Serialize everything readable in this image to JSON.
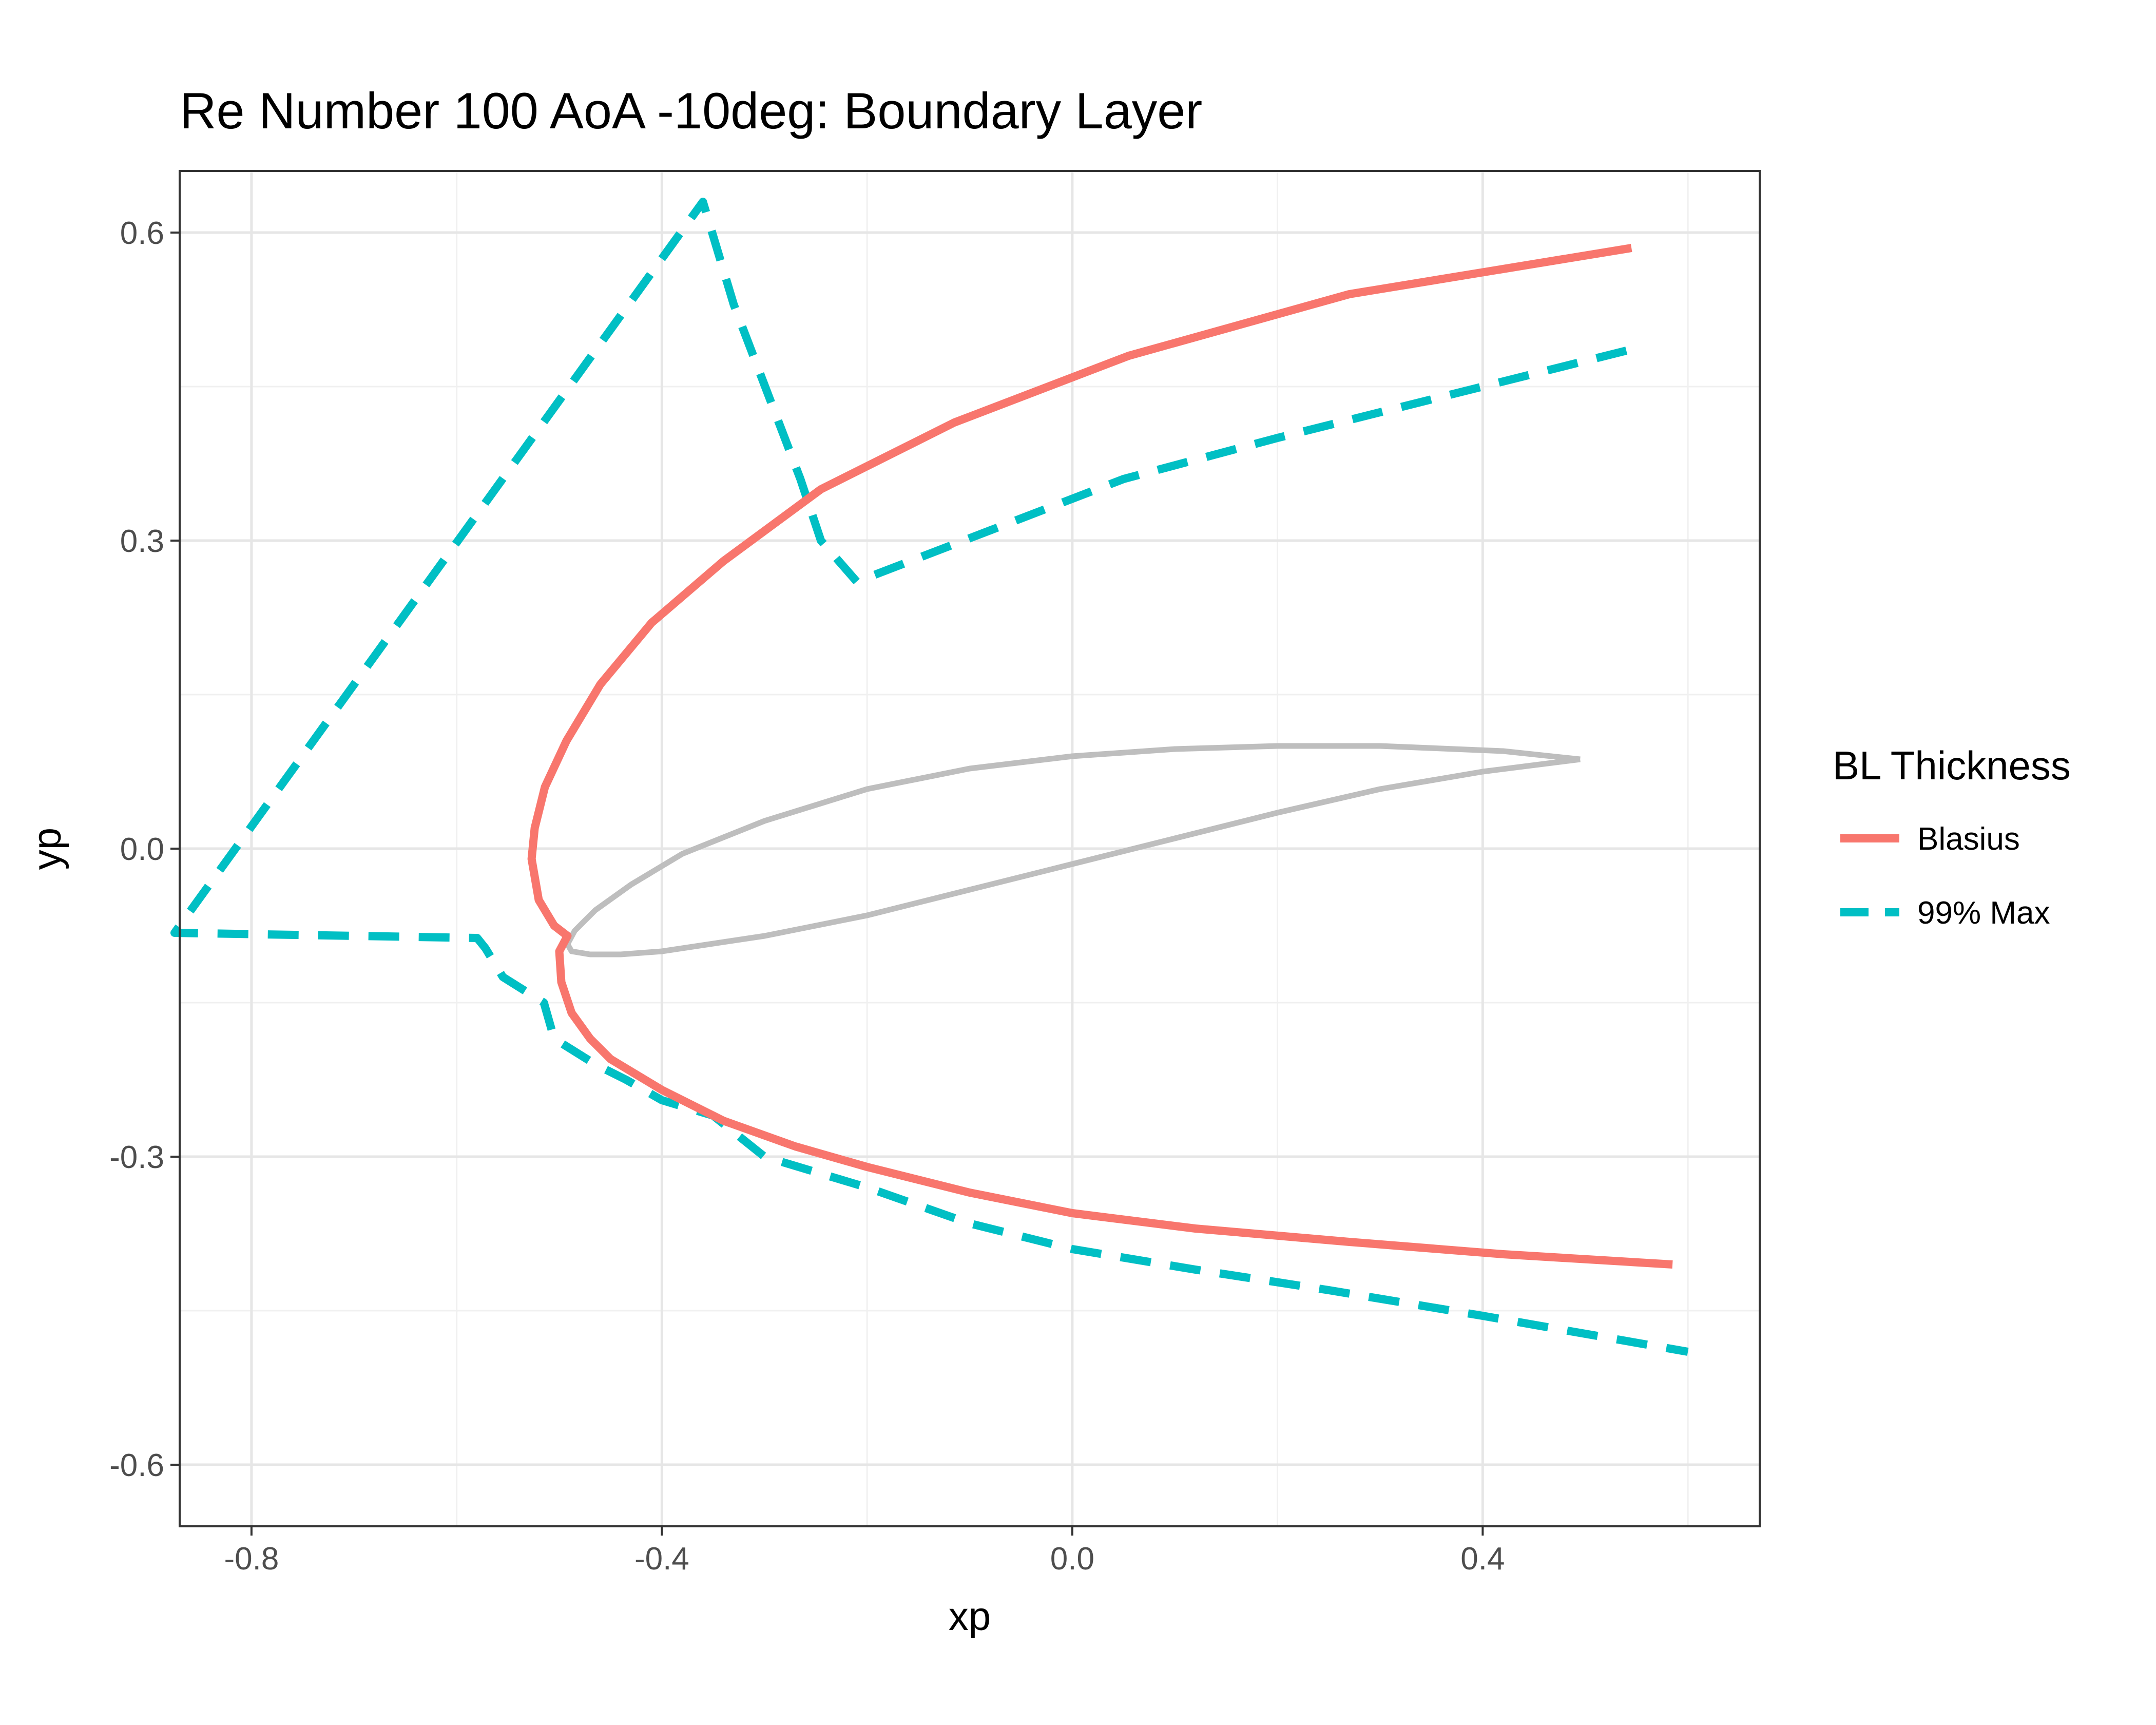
{
  "chart_data": {
    "type": "line",
    "title": "Re Number 100 AoA -10deg: Boundary Layer",
    "xlabel": "xp",
    "ylabel": "yp",
    "xlim": [
      -0.87,
      0.67
    ],
    "ylim": [
      -0.66,
      0.66
    ],
    "x_ticks": [
      -0.8,
      -0.4,
      0.0,
      0.4
    ],
    "x_tick_labels": [
      "-0.8",
      "-0.4",
      "0.0",
      "0.4"
    ],
    "y_ticks": [
      -0.6,
      -0.3,
      0.0,
      0.3,
      0.6
    ],
    "y_tick_labels": [
      "-0.6",
      "-0.3",
      "0.0",
      "0.3",
      "0.6"
    ],
    "grid": true,
    "legend": {
      "title": "BL Thickness",
      "position": "right",
      "entries": [
        "Blasius",
        "99% Max"
      ]
    },
    "series": [
      {
        "name": "Blasius",
        "color": "#f8766d",
        "dash": "solid",
        "x": [
          0.545,
          0.27,
          0.055,
          -0.115,
          -0.245,
          -0.34,
          -0.41,
          -0.46,
          -0.493,
          -0.514,
          -0.524,
          -0.527,
          -0.52,
          -0.505,
          -0.492,
          -0.5,
          -0.498,
          -0.488,
          -0.47,
          -0.45,
          -0.4,
          -0.34,
          -0.27,
          -0.2,
          -0.1,
          0.0,
          0.12,
          0.27,
          0.42,
          0.585
        ],
        "y": [
          0.585,
          0.54,
          0.48,
          0.415,
          0.35,
          0.28,
          0.22,
          0.16,
          0.105,
          0.06,
          0.02,
          -0.01,
          -0.05,
          -0.075,
          -0.085,
          -0.1,
          -0.13,
          -0.16,
          -0.185,
          -0.205,
          -0.235,
          -0.265,
          -0.29,
          -0.31,
          -0.335,
          -0.355,
          -0.37,
          -0.383,
          -0.395,
          -0.405
        ]
      },
      {
        "name": "99% Max",
        "color": "#00bfc4",
        "dash": "dashed",
        "x": [
          0.54,
          0.4,
          0.2,
          0.05,
          -0.08,
          -0.21,
          -0.245,
          -0.265,
          -0.33,
          -0.36,
          -0.875,
          -0.58,
          -0.572,
          -0.555,
          -0.515,
          -0.505,
          -0.465,
          -0.435,
          -0.4,
          -0.35,
          -0.3,
          -0.2,
          -0.1,
          0.0,
          0.12,
          0.25,
          0.4,
          0.6
        ],
        "y": [
          0.485,
          0.45,
          0.4,
          0.36,
          0.31,
          0.26,
          0.3,
          0.36,
          0.53,
          0.63,
          -0.082,
          -0.087,
          -0.097,
          -0.125,
          -0.15,
          -0.185,
          -0.21,
          -0.225,
          -0.245,
          -0.26,
          -0.3,
          -0.33,
          -0.365,
          -0.39,
          -0.41,
          -0.43,
          -0.455,
          -0.49
        ]
      },
      {
        "name": "",
        "color": "#bebebe",
        "dash": "solid",
        "x": [
          0.495,
          0.42,
          0.3,
          0.2,
          0.1,
          0.0,
          -0.1,
          -0.2,
          -0.3,
          -0.38,
          -0.43,
          -0.465,
          -0.485,
          -0.492,
          -0.488,
          -0.47,
          -0.44,
          -0.4,
          -0.3,
          -0.2,
          -0.1,
          0.0,
          0.1,
          0.2,
          0.3,
          0.4,
          0.495
        ],
        "y": [
          0.087,
          0.095,
          0.1,
          0.1,
          0.097,
          0.09,
          0.078,
          0.058,
          0.027,
          -0.005,
          -0.035,
          -0.06,
          -0.08,
          -0.093,
          -0.1,
          -0.103,
          -0.103,
          -0.1,
          -0.085,
          -0.065,
          -0.04,
          -0.015,
          0.01,
          0.035,
          0.058,
          0.075,
          0.087
        ]
      }
    ]
  }
}
